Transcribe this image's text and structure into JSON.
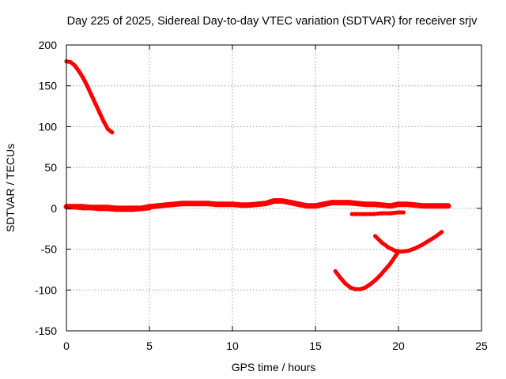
{
  "chart_data": {
    "type": "scatter",
    "title": "Day 225 of 2025, Sidereal Day-to-day VTEC variation (SDTVAR) for receiver srjv",
    "xlabel": "GPS time / hours",
    "ylabel": "SDTVAR / TECUs",
    "xlim": [
      0,
      25
    ],
    "ylim": [
      -150,
      200
    ],
    "xticks": [
      "0",
      "5",
      "10",
      "15",
      "20",
      "25"
    ],
    "yticks": [
      "-150",
      "-100",
      "-50",
      "0",
      "50",
      "100",
      "150",
      "200"
    ],
    "grid": true,
    "color": "#ff0000",
    "series": [
      {
        "x": [
          0.0,
          0.25,
          0.5,
          0.75,
          1.0,
          1.25,
          1.5,
          1.75,
          2.0,
          2.25,
          2.5,
          2.75
        ],
        "y": [
          180,
          179,
          175,
          168,
          160,
          150,
          139,
          128,
          117,
          106,
          97,
          93
        ]
      },
      {
        "x": [
          0.0,
          0.5,
          1.0,
          1.5,
          2.0,
          2.5,
          3.0,
          3.5,
          4.0,
          4.5,
          5.0,
          5.5,
          6.0,
          6.5,
          7.0,
          7.5,
          8.0,
          8.5,
          9.0,
          9.5,
          10.0,
          10.5,
          11.0,
          11.5,
          12.0,
          12.5,
          13.0,
          13.5,
          14.0,
          14.5,
          15.0,
          15.5,
          16.0,
          16.5,
          17.0,
          17.5,
          18.0,
          18.5,
          19.0,
          19.5,
          20.0,
          20.5,
          21.0,
          21.5,
          22.0,
          22.5,
          23.0
        ],
        "y": [
          2,
          2,
          2,
          1,
          1,
          1,
          0,
          0,
          0,
          0,
          2,
          3,
          4,
          5,
          6,
          6,
          6,
          6,
          5,
          5,
          5,
          4,
          4,
          5,
          6,
          9,
          9,
          7,
          5,
          3,
          3,
          5,
          7,
          7,
          7,
          6,
          5,
          5,
          4,
          3,
          5,
          5,
          4,
          3,
          3,
          3,
          3
        ]
      },
      {
        "x": [
          0.0,
          0.5,
          1.0,
          1.5,
          2.0,
          2.5,
          3.0,
          3.5,
          4.0,
          4.5,
          5.0
        ],
        "y": [
          1,
          1,
          0,
          0,
          -1,
          -1,
          -2,
          -2,
          -2,
          -1,
          0
        ]
      },
      {
        "x": [
          17.2,
          17.5,
          18.0,
          18.5,
          19.0,
          19.5,
          20.0,
          20.3
        ],
        "y": [
          -7,
          -7,
          -7,
          -7,
          -6,
          -6,
          -5,
          -5
        ]
      },
      {
        "x": [
          16.2,
          16.5,
          16.8,
          17.1,
          17.4,
          17.7,
          18.0,
          18.3,
          18.6,
          18.9,
          19.2,
          19.5,
          19.8,
          20.0
        ],
        "y": [
          -77,
          -85,
          -92,
          -97,
          -99,
          -99,
          -97,
          -93,
          -88,
          -82,
          -75,
          -68,
          -59,
          -53
        ]
      },
      {
        "x": [
          18.6,
          19.0,
          19.4,
          19.8,
          20.2,
          20.6,
          21.0,
          21.4,
          21.8,
          22.2,
          22.6
        ],
        "y": [
          -34,
          -42,
          -48,
          -52,
          -53,
          -52,
          -49,
          -45,
          -40,
          -35,
          -29
        ]
      }
    ]
  }
}
